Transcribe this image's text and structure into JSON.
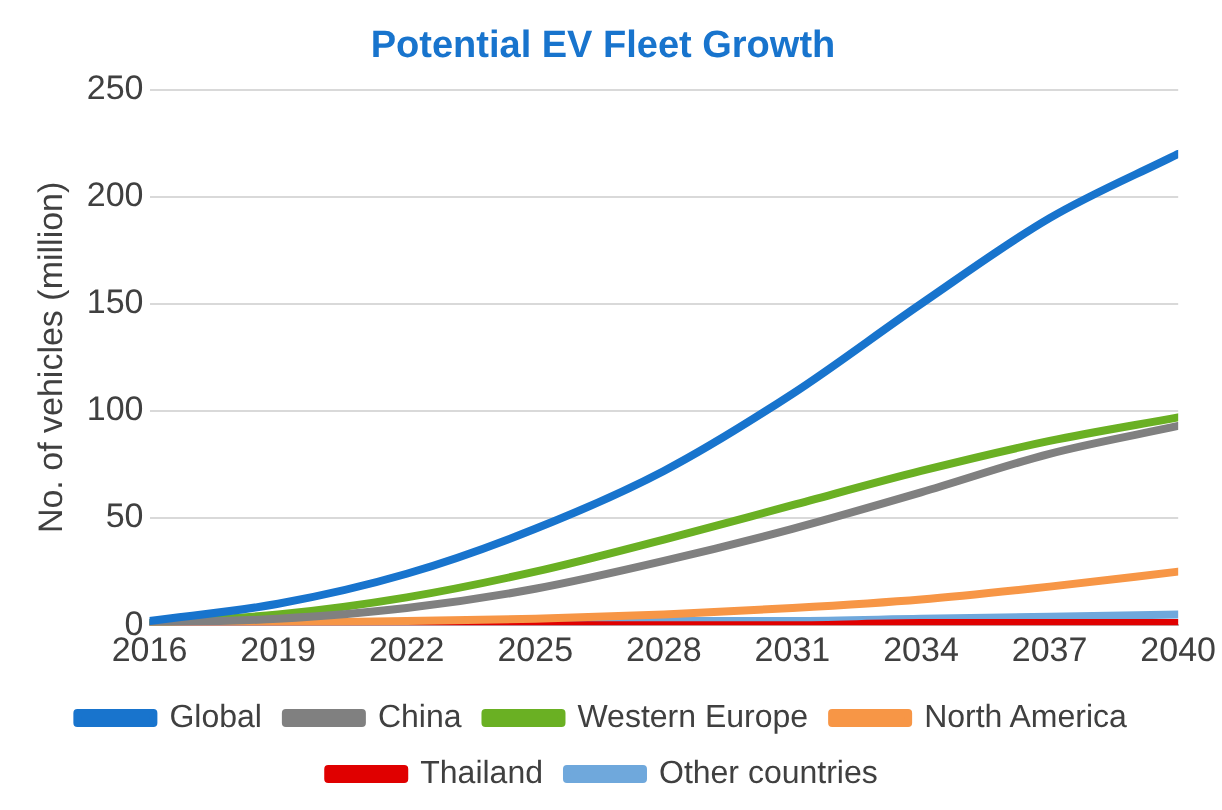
{
  "chart_data": {
    "type": "line",
    "title": "Potential EV Fleet Growth",
    "ylabel": "No. of vehicles (million)",
    "x": [
      2016,
      2019,
      2022,
      2025,
      2028,
      2031,
      2034,
      2037,
      2040
    ],
    "series": [
      {
        "name": "Global",
        "color": "#1874cd",
        "values": [
          2,
          10,
          24,
          45,
          72,
          108,
          150,
          190,
          220
        ]
      },
      {
        "name": "China",
        "color": "#808080",
        "values": [
          1,
          3,
          8,
          17,
          30,
          45,
          62,
          80,
          93
        ]
      },
      {
        "name": "Western Europe",
        "color": "#6ab023",
        "values": [
          1,
          5,
          13,
          25,
          40,
          56,
          72,
          86,
          97
        ]
      },
      {
        "name": "North America",
        "color": "#f79646",
        "values": [
          0,
          1,
          2,
          3,
          5,
          8,
          12,
          18,
          25
        ]
      },
      {
        "name": "Thailand",
        "color": "#e00000",
        "values": [
          0,
          0,
          0,
          0,
          0,
          0,
          1,
          1,
          1
        ]
      },
      {
        "name": "Other countries",
        "color": "#6fa8dc",
        "values": [
          1,
          1,
          1,
          1,
          2,
          2,
          3,
          4,
          5
        ]
      }
    ],
    "xlim": [
      2016,
      2040
    ],
    "xticks": [
      2016,
      2019,
      2022,
      2025,
      2028,
      2031,
      2034,
      2037,
      2040
    ],
    "ylim": [
      0,
      250
    ],
    "yticks": [
      0,
      50,
      100,
      150,
      200,
      250
    ],
    "grid": "y",
    "legend": "bottom",
    "marker": "none",
    "line_style": "solid"
  }
}
